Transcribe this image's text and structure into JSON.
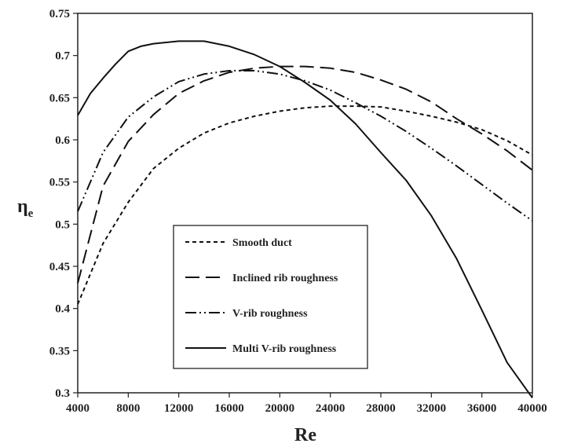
{
  "chart_data": {
    "type": "line",
    "xlabel": "Re",
    "ylabel": "η",
    "ylabel_sub": "e",
    "xlim": [
      4000,
      40000
    ],
    "ylim": [
      0.3,
      0.75
    ],
    "xticks": [
      "4000",
      "8000",
      "12000",
      "16000",
      "20000",
      "24000",
      "28000",
      "32000",
      "36000",
      "40000"
    ],
    "yticks": [
      "0.3",
      "0.35",
      "0.4",
      "0.45",
      "0.5",
      "0.55",
      "0.6",
      "0.65",
      "0.7",
      "0.75"
    ],
    "grid": false,
    "legend_position": "center-left",
    "series": [
      {
        "name": "Smooth duct",
        "dash": "5,4",
        "x": [
          4000,
          6000,
          8000,
          10000,
          12000,
          14000,
          16000,
          18000,
          20000,
          22000,
          24000,
          26000,
          28000,
          30000,
          32000,
          34000,
          36000,
          38000,
          40000
        ],
        "y": [
          0.405,
          0.477,
          0.526,
          0.566,
          0.59,
          0.608,
          0.62,
          0.628,
          0.634,
          0.638,
          0.64,
          0.64,
          0.639,
          0.634,
          0.628,
          0.621,
          0.612,
          0.599,
          0.582
        ]
      },
      {
        "name": "Inclined rib roughness",
        "dash": "18,8",
        "x": [
          4000,
          6000,
          8000,
          10000,
          12000,
          14000,
          16000,
          18000,
          20000,
          22000,
          24000,
          26000,
          28000,
          30000,
          32000,
          34000,
          36000,
          38000,
          40000
        ],
        "y": [
          0.43,
          0.545,
          0.598,
          0.63,
          0.655,
          0.67,
          0.68,
          0.685,
          0.687,
          0.687,
          0.685,
          0.68,
          0.671,
          0.66,
          0.645,
          0.625,
          0.607,
          0.587,
          0.564
        ]
      },
      {
        "name": "V-rib roughness",
        "dash": "14,4,2,4,2,4",
        "x": [
          4000,
          6000,
          8000,
          10000,
          12000,
          14000,
          16000,
          18000,
          20000,
          22000,
          24000,
          26000,
          28000,
          30000,
          32000,
          34000,
          36000,
          38000,
          40000
        ],
        "y": [
          0.515,
          0.585,
          0.627,
          0.651,
          0.669,
          0.678,
          0.682,
          0.682,
          0.678,
          0.67,
          0.659,
          0.644,
          0.628,
          0.61,
          0.59,
          0.569,
          0.547,
          0.525,
          0.504
        ]
      },
      {
        "name": "Multi V-rib roughness",
        "dash": "",
        "x": [
          4000,
          5000,
          6000,
          7000,
          8000,
          9000,
          10000,
          12000,
          14000,
          16000,
          18000,
          20000,
          22000,
          24000,
          26000,
          28000,
          30000,
          32000,
          34000,
          36000,
          38000,
          40000
        ],
        "y": [
          0.629,
          0.655,
          0.673,
          0.69,
          0.705,
          0.711,
          0.714,
          0.717,
          0.717,
          0.711,
          0.701,
          0.687,
          0.668,
          0.647,
          0.619,
          0.585,
          0.552,
          0.51,
          0.459,
          0.398,
          0.336,
          0.294
        ]
      }
    ]
  }
}
